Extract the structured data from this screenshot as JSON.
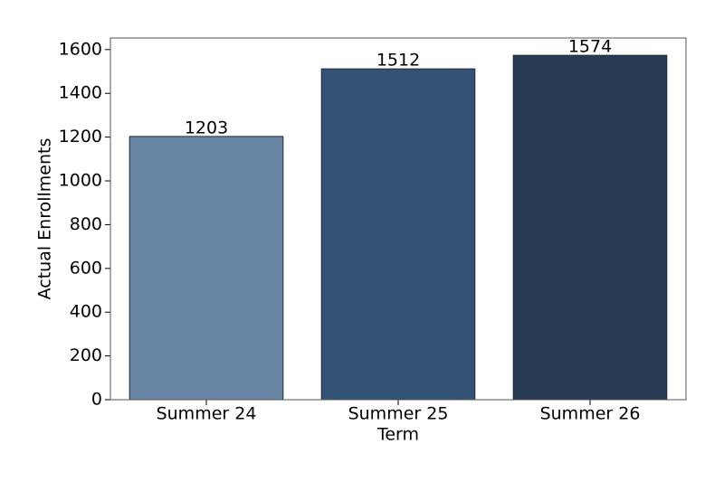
{
  "chart_data": {
    "type": "bar",
    "x_label": "Term",
    "y_label": "Actual Enrollments",
    "categories": [
      "Summer 24",
      "Summer 25",
      "Summer 26"
    ],
    "values": [
      1203,
      1512,
      1574
    ],
    "colors": [
      "#6886a3",
      "#345274",
      "#273a54"
    ],
    "ylim": [
      0,
      1653
    ],
    "yticks": [
      0,
      200,
      400,
      600,
      800,
      1000,
      1200,
      1400,
      1600
    ],
    "grid": false
  }
}
